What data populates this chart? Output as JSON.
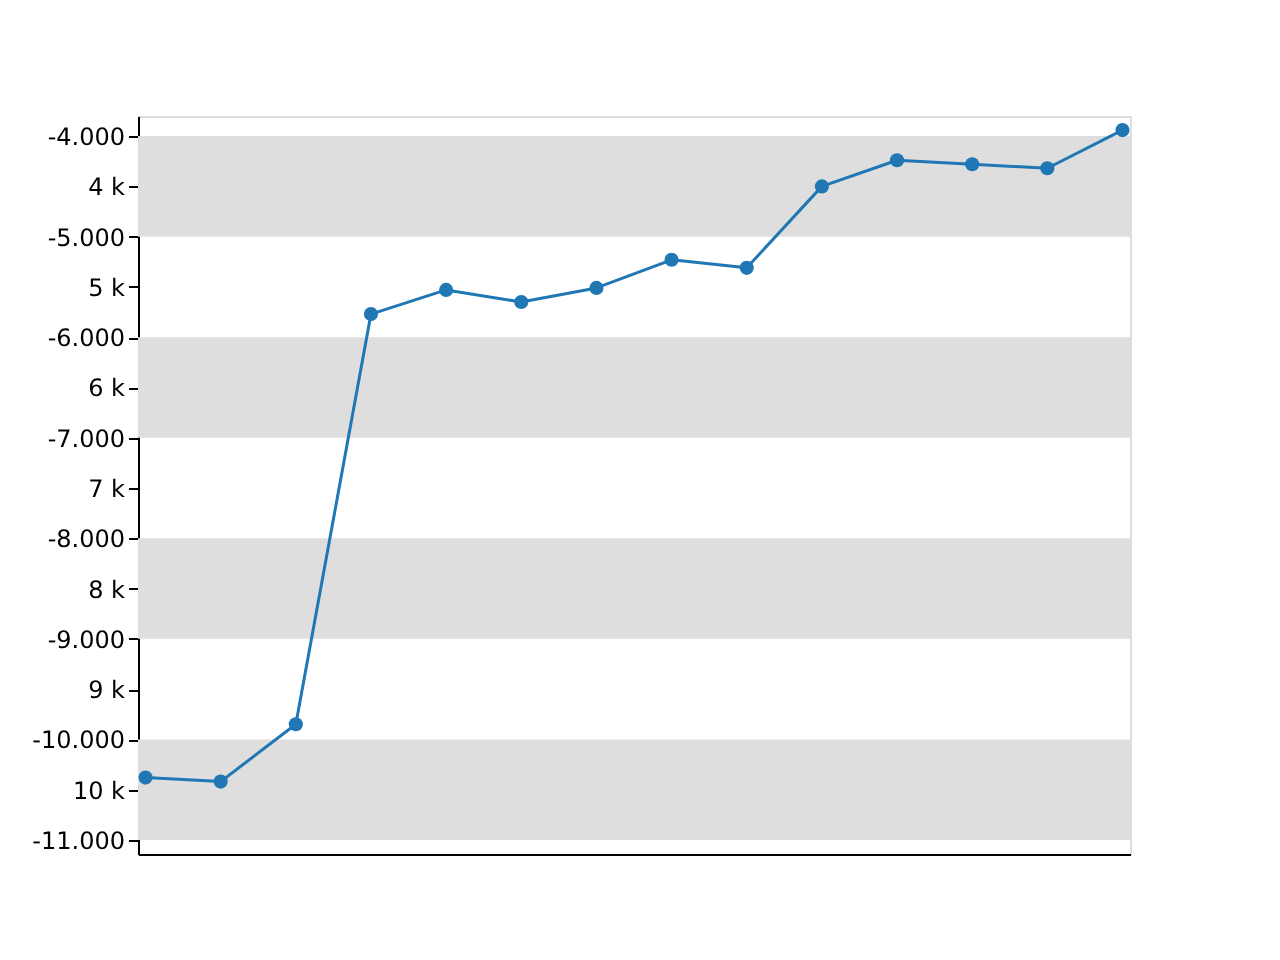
{
  "chart_data": {
    "type": "line",
    "categories": [
      null,
      null,
      null,
      null,
      null,
      null,
      null,
      null,
      null,
      null,
      null,
      null,
      null,
      null
    ],
    "series": [
      {
        "color": "#1f77b4",
        "values": [
          -10380,
          -10420,
          -9850,
          -5770,
          -5530,
          -5650,
          -5510,
          -5230,
          -5310,
          -4500,
          -4240,
          -4280,
          -4320,
          -3940
        ]
      }
    ],
    "ylim": [
      -11140,
      -3800
    ],
    "yticks": [
      {
        "value": -4000,
        "label": "-4.000"
      },
      {
        "value": -4500,
        "label": "4 k"
      },
      {
        "value": -5000,
        "label": "-5.000"
      },
      {
        "value": -5500,
        "label": "5 k"
      },
      {
        "value": -6000,
        "label": "-6.000"
      },
      {
        "value": -6500,
        "label": "6 k"
      },
      {
        "value": -7000,
        "label": "-7.000"
      },
      {
        "value": -7500,
        "label": "7 k"
      },
      {
        "value": -8000,
        "label": "-8.000"
      },
      {
        "value": -8500,
        "label": "8 k"
      },
      {
        "value": -9000,
        "label": "-9.000"
      },
      {
        "value": -9500,
        "label": "9 k"
      },
      {
        "value": -10000,
        "label": "-10.000"
      },
      {
        "value": -10500,
        "label": "10 k"
      },
      {
        "value": -11000,
        "label": "-11.000"
      }
    ],
    "bands": [
      {
        "axis": "y",
        "from": -4000,
        "to": -5000,
        "color": "#dedede"
      },
      {
        "axis": "y",
        "from": -6000,
        "to": -7000,
        "color": "#dedede"
      },
      {
        "axis": "y",
        "from": -8000,
        "to": -9000,
        "color": "#dedede"
      },
      {
        "axis": "y",
        "from": -10000,
        "to": -11000,
        "color": "#dedede"
      }
    ],
    "tick_labels": "y",
    "marker": "circle",
    "line_style": "solid",
    "grid": false
  }
}
